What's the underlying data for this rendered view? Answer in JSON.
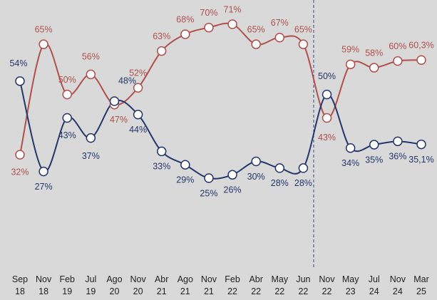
{
  "chart_data": {
    "type": "line",
    "categories": [
      "Sep 18",
      "Nov 18",
      "Feb 19",
      "Jul 19",
      "Ago 20",
      "Nov 20",
      "Abr 21",
      "Ago 21",
      "Nov 21",
      "Feb 22",
      "Abr 22",
      "May 22",
      "Jun 22",
      "Nov 22",
      "May 23",
      "Jul 24",
      "Nov 24",
      "Mar 25"
    ],
    "series": [
      {
        "color": "#b0504c",
        "values": [
          32,
          65,
          50,
          56,
          47,
          52,
          63,
          68,
          70,
          71,
          65,
          67,
          65,
          43,
          59,
          58,
          60,
          60.3
        ],
        "value_labels": [
          "32%",
          "65%",
          "50%",
          "56%",
          "47%",
          "52%",
          "63%",
          "68%",
          "70%",
          "71%",
          "65%",
          "67%",
          "65%",
          "43%",
          "59%",
          "58%",
          "60%",
          "60,3%"
        ]
      },
      {
        "color": "#25366b",
        "values": [
          54,
          27,
          43,
          37,
          48,
          44,
          33,
          29,
          25,
          26,
          30,
          28,
          28,
          50,
          34,
          35,
          36,
          35.1
        ],
        "value_labels": [
          "54%",
          "27%",
          "43%",
          "37%",
          "48%",
          "44%",
          "33%",
          "29%",
          "25%",
          "26%",
          "30%",
          "28%",
          "28%",
          "50%",
          "34%",
          "35%",
          "36%",
          "35,1%"
        ]
      }
    ]
  }
}
